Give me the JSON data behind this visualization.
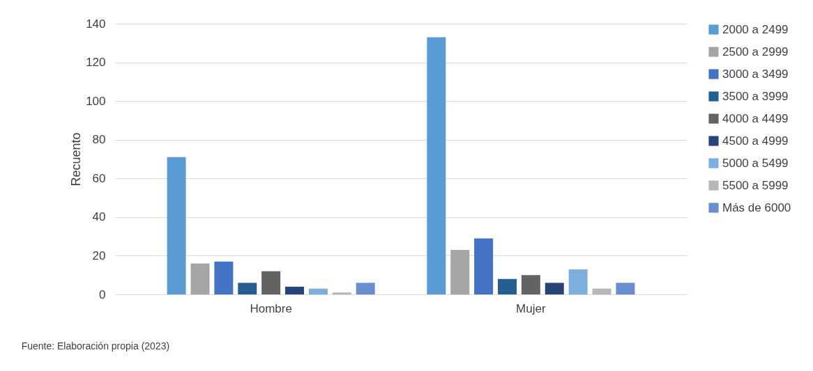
{
  "chart_data": {
    "type": "bar",
    "ylabel": "Recuento",
    "categories": [
      "Hombre",
      "Mujer"
    ],
    "series": [
      {
        "name": "2000 a 2499",
        "color": "#5b9bd5",
        "values": [
          71,
          133
        ]
      },
      {
        "name": "2500 a 2999",
        "color": "#a5a5a5",
        "values": [
          16,
          23
        ]
      },
      {
        "name": "3000 a 3499",
        "color": "#4472c4",
        "values": [
          17,
          29
        ]
      },
      {
        "name": "3500 a 3999",
        "color": "#255e91",
        "values": [
          6,
          8
        ]
      },
      {
        "name": "4000 a 4499",
        "color": "#636363",
        "values": [
          12,
          10
        ]
      },
      {
        "name": "4500 a 4999",
        "color": "#264478",
        "values": [
          4,
          6
        ]
      },
      {
        "name": "5000 a 5499",
        "color": "#7cafdd",
        "values": [
          3,
          13
        ]
      },
      {
        "name": "5500 a 5999",
        "color": "#b7b7b7",
        "values": [
          1,
          3
        ]
      },
      {
        "name": "Más de 6000",
        "color": "#698ed0",
        "values": [
          6,
          6
        ]
      }
    ],
    "ylim": [
      0,
      140
    ],
    "yticks": [
      0,
      20,
      40,
      60,
      80,
      100,
      120,
      140
    ],
    "grid": "y",
    "legend": "right",
    "annotations": [
      "Fuente: Elaboración propia (2023)"
    ]
  }
}
